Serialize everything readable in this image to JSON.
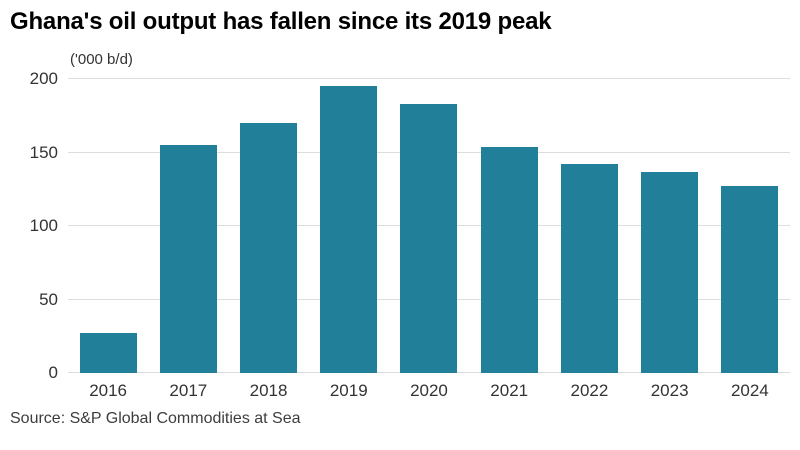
{
  "title": "Ghana's oil output has fallen since its 2019 peak",
  "source": "Source: S&P Global Commodities at Sea",
  "chart_data": {
    "type": "bar",
    "title": "Ghana's oil output has fallen since its 2019 peak",
    "unit_label": "('000 b/d)",
    "categories": [
      "2016",
      "2017",
      "2018",
      "2019",
      "2020",
      "2021",
      "2022",
      "2023",
      "2024"
    ],
    "values": [
      27,
      155,
      170,
      195,
      183,
      154,
      142,
      137,
      127
    ],
    "xlabel": "",
    "ylabel": "('000 b/d)",
    "ylim": [
      0,
      200
    ],
    "yticks": [
      0,
      50,
      100,
      150,
      200
    ],
    "grid": true,
    "legend": "none",
    "bar_color": "#217f99"
  },
  "colors": {
    "bar": "#217f99",
    "grid": "#dddddd",
    "title": "#000000",
    "axis_text": "#333333",
    "source_text": "#3d3d3d",
    "background": "#ffffff"
  }
}
